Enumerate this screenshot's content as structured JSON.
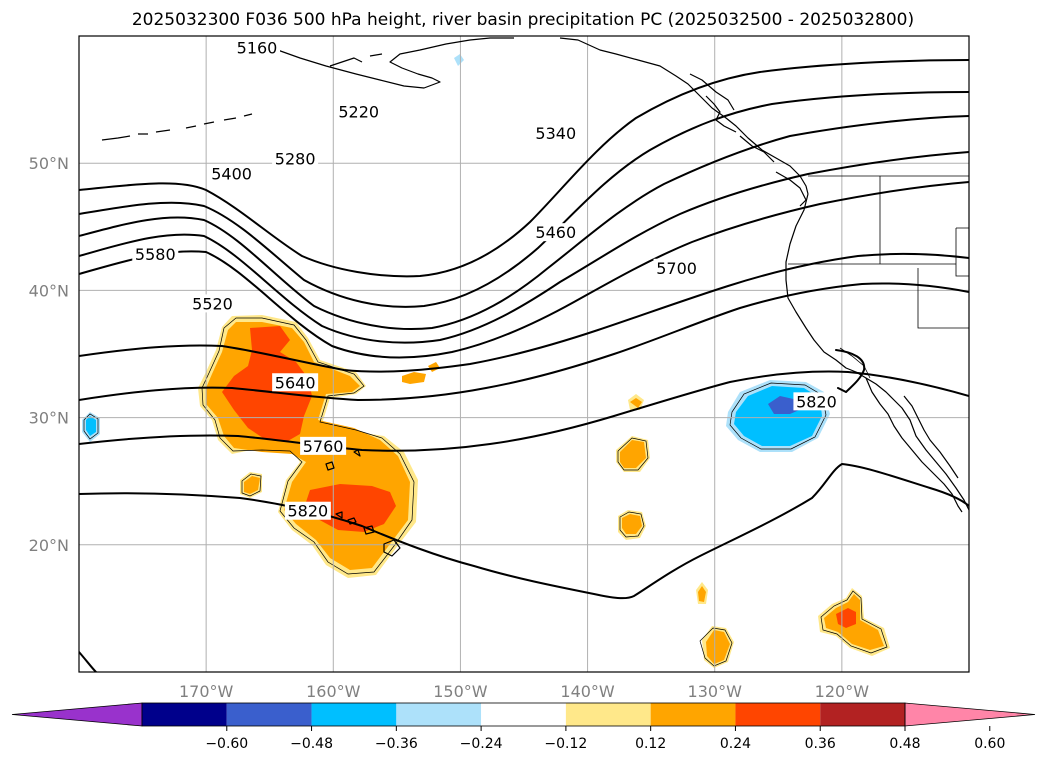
{
  "title": "2025032300 F036 500 hPa height, river basin precipitation PC (2025032500 - 2025032800)",
  "map": {
    "projection": "PlateCarree",
    "lon_range": [
      -180,
      -110
    ],
    "lat_range": [
      10,
      60
    ],
    "gridlines": true,
    "lat_ticks": [
      {
        "value": 20,
        "label": "20°N"
      },
      {
        "value": 30,
        "label": "30°N"
      },
      {
        "value": 40,
        "label": "40°N"
      },
      {
        "value": 50,
        "label": "50°N"
      }
    ],
    "lon_ticks": [
      {
        "value": -170,
        "label": "170°W"
      },
      {
        "value": -160,
        "label": "160°W"
      },
      {
        "value": -150,
        "label": "150°W"
      },
      {
        "value": -140,
        "label": "140°W"
      },
      {
        "value": -130,
        "label": "130°W"
      },
      {
        "value": -120,
        "label": "120°W"
      }
    ]
  },
  "contour_labels": [
    {
      "text": "5160",
      "lon": -166,
      "lat": 59
    },
    {
      "text": "5220",
      "lon": -158,
      "lat": 54
    },
    {
      "text": "5280",
      "lon": -163,
      "lat": 50.3
    },
    {
      "text": "5400",
      "lon": -168,
      "lat": 49.1
    },
    {
      "text": "5340",
      "lon": -142.5,
      "lat": 52.3
    },
    {
      "text": "5460",
      "lon": -142.5,
      "lat": 44.5
    },
    {
      "text": "5580",
      "lon": -174,
      "lat": 42.8
    },
    {
      "text": "5520",
      "lon": -169.5,
      "lat": 38.9
    },
    {
      "text": "5700",
      "lon": -133,
      "lat": 41.7
    },
    {
      "text": "5640",
      "lon": -163,
      "lat": 32.7
    },
    {
      "text": "5760",
      "lon": -160.8,
      "lat": 27.7
    },
    {
      "text": "5820",
      "lon": -162,
      "lat": 22.6
    },
    {
      "text": "5820",
      "lon": -122,
      "lat": 31.2
    }
  ],
  "colorbar": {
    "levels": [
      "-0.60",
      "-0.48",
      "-0.36",
      "-0.24",
      "-0.12",
      "0.12",
      "0.24",
      "0.36",
      "0.48",
      "0.60"
    ],
    "colors": [
      "#9932CC",
      "#00008B",
      "#3A5FCD",
      "#00BFFF",
      "#ADE1FA",
      "#FFFFFF",
      "#FFE88A",
      "#FFA500",
      "#FF4500",
      "#B22222",
      "#FF85A8"
    ],
    "extend": "both"
  }
}
